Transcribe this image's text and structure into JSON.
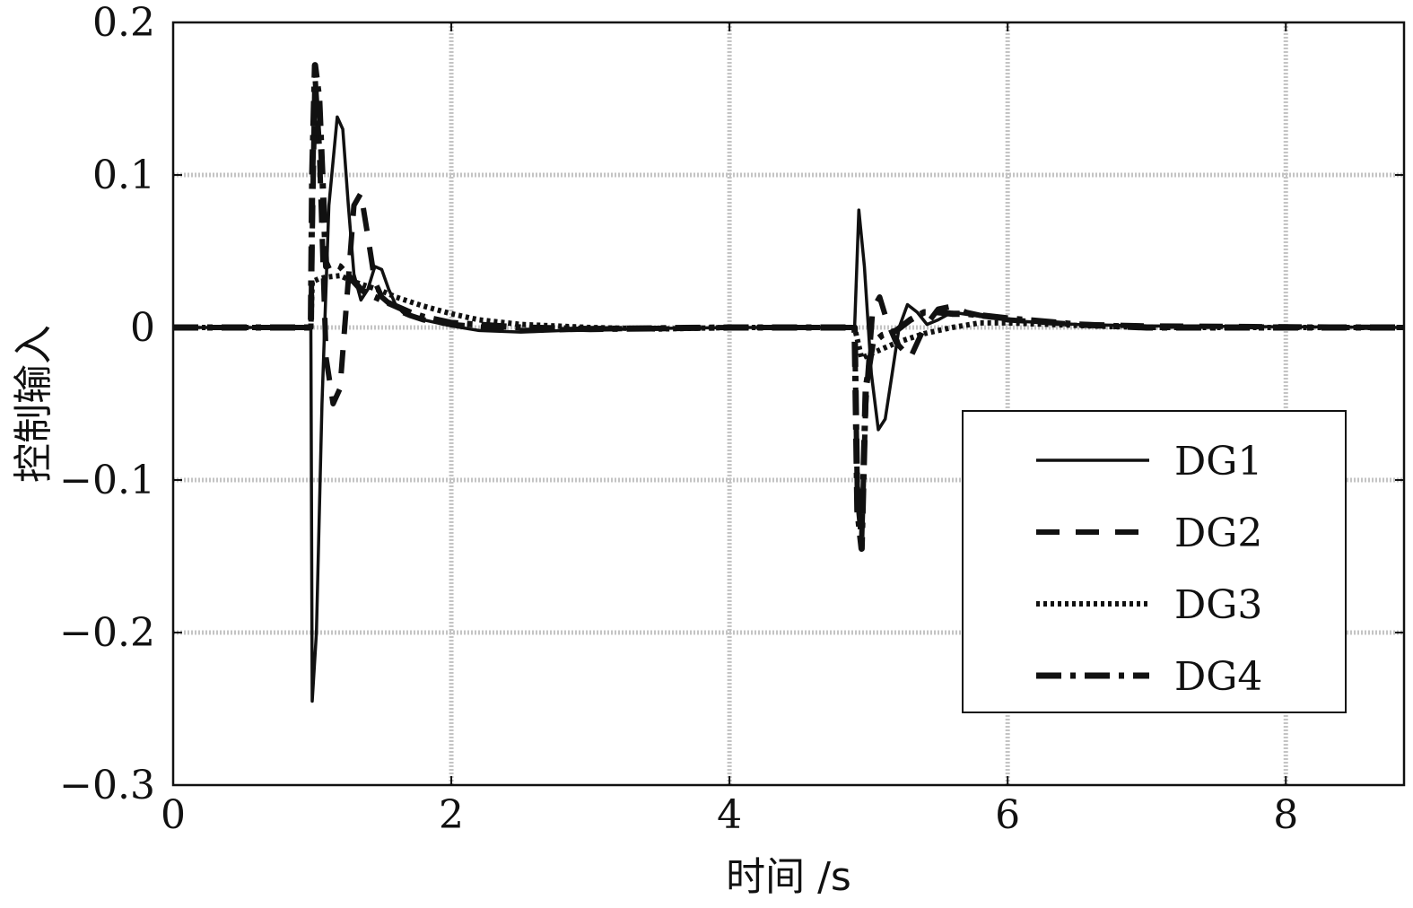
{
  "chart_data": {
    "type": "line",
    "title": "",
    "xlabel": "时间 /s",
    "ylabel": "控制输入",
    "xlim": [
      0,
      8.85
    ],
    "ylim": [
      -0.3,
      0.2
    ],
    "xticks": [
      0,
      2,
      4,
      6,
      8
    ],
    "yticks": [
      0.2,
      0.1,
      0,
      -0.1,
      -0.2,
      -0.3
    ],
    "xtick_labels": [
      "0",
      "2",
      "4",
      "6",
      "8"
    ],
    "ytick_labels": [
      "0.2",
      "0.1",
      "0",
      "−0.1",
      "−0.2",
      "−0.3"
    ],
    "grid": true,
    "legend_position": "lower-right",
    "series": [
      {
        "name": "DG1",
        "style": "solid",
        "x": [
          0,
          0.99,
          1.0,
          1.03,
          1.07,
          1.12,
          1.18,
          1.22,
          1.26,
          1.3,
          1.35,
          1.4,
          1.45,
          1.5,
          1.55,
          1.6,
          1.65,
          1.7,
          1.8,
          1.9,
          2.0,
          2.2,
          2.5,
          2.8,
          3.2,
          4.0,
          4.9,
          4.93,
          4.97,
          5.02,
          5.07,
          5.12,
          5.17,
          5.22,
          5.28,
          5.35,
          5.42,
          5.5,
          5.6,
          5.75,
          5.9,
          6.1,
          6.5,
          7.0,
          8.85
        ],
        "y": [
          0,
          0,
          -0.245,
          -0.2,
          -0.05,
          0.08,
          0.138,
          0.13,
          0.08,
          0.035,
          0.018,
          0.025,
          0.04,
          0.038,
          0.025,
          0.015,
          0.01,
          0.008,
          0.005,
          0.003,
          0.001,
          -0.002,
          -0.003,
          -0.002,
          -0.001,
          0,
          0,
          0.077,
          0.04,
          -0.03,
          -0.067,
          -0.06,
          -0.03,
          0.0,
          0.015,
          0.01,
          0.002,
          0.005,
          0.01,
          0.008,
          0.006,
          0.004,
          0.002,
          0.001,
          0
        ]
      },
      {
        "name": "DG2",
        "style": "dashed",
        "x": [
          0,
          0.99,
          1.0,
          1.02,
          1.05,
          1.1,
          1.15,
          1.2,
          1.25,
          1.3,
          1.35,
          1.4,
          1.45,
          1.5,
          1.6,
          1.7,
          1.8,
          2.0,
          2.5,
          3.0,
          4.0,
          4.9,
          4.92,
          4.95,
          4.98,
          5.03,
          5.08,
          5.13,
          5.2,
          5.3,
          5.4,
          5.5,
          5.6,
          5.7,
          5.8,
          6.0,
          6.5,
          7.0,
          8.85
        ],
        "y": [
          0,
          0,
          0.06,
          0.165,
          0.12,
          -0.02,
          -0.05,
          -0.04,
          0.02,
          0.08,
          0.088,
          0.06,
          0.03,
          0.02,
          0.012,
          0.008,
          0.005,
          0.002,
          -0.002,
          -0.001,
          0,
          0,
          -0.11,
          -0.14,
          -0.05,
          0.012,
          0.02,
          0.005,
          -0.01,
          -0.02,
          0.0,
          0.012,
          0.014,
          0.01,
          0.008,
          0.005,
          0.002,
          0.001,
          0
        ]
      },
      {
        "name": "DG3",
        "style": "dotted",
        "x": [
          0,
          0.99,
          1.0,
          1.05,
          1.1,
          1.2,
          1.3,
          1.4,
          1.5,
          1.6,
          1.8,
          2.0,
          2.2,
          2.5,
          3.0,
          3.5,
          4.0,
          4.9,
          4.95,
          5.0,
          5.1,
          5.2,
          5.4,
          5.6,
          5.8,
          6.0,
          6.3,
          6.6,
          7.0,
          8.85
        ],
        "y": [
          0,
          0,
          0.03,
          0.032,
          0.033,
          0.034,
          0.03,
          0.027,
          0.024,
          0.02,
          0.014,
          0.009,
          0.005,
          0.002,
          0.0,
          -0.001,
          0,
          0,
          -0.02,
          -0.018,
          -0.014,
          -0.01,
          -0.004,
          0.0,
          0.003,
          0.003,
          0.002,
          0.001,
          0.0,
          0
        ]
      },
      {
        "name": "DG4",
        "style": "dashdot",
        "x": [
          0,
          0.99,
          1.0,
          1.02,
          1.05,
          1.1,
          1.15,
          1.2,
          1.25,
          1.3,
          1.35,
          1.4,
          1.45,
          1.5,
          1.6,
          1.7,
          1.8,
          2.0,
          2.5,
          3.0,
          4.0,
          4.9,
          4.92,
          4.95,
          4.98,
          5.03,
          5.1,
          5.2,
          5.3,
          5.4,
          5.5,
          5.6,
          5.7,
          5.8,
          6.0,
          6.5,
          7.0,
          8.85
        ],
        "y": [
          0,
          0,
          0.1,
          0.172,
          0.15,
          0.04,
          0.042,
          0.04,
          0.035,
          0.03,
          0.025,
          0.022,
          0.02,
          0.018,
          0.014,
          0.01,
          0.007,
          0.003,
          0.0,
          -0.001,
          0,
          0,
          -0.12,
          -0.145,
          -0.04,
          -0.01,
          -0.005,
          -0.002,
          0.005,
          0.01,
          0.01,
          0.009,
          0.009,
          0.008,
          0.006,
          0.002,
          0.0,
          0
        ]
      }
    ]
  }
}
